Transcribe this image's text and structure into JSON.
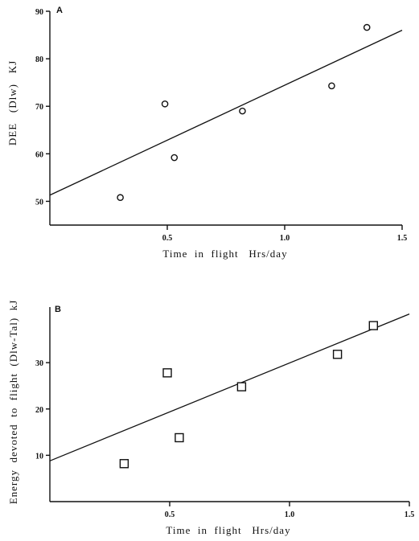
{
  "chart_data": [
    {
      "type": "scatter",
      "panel_label": "A",
      "xlabel": "Time  in  flight   Hrs/day",
      "ylabel": "DEE   (Dlw)   KJ",
      "xlim": [
        0,
        1.5
      ],
      "ylim": [
        45,
        90
      ],
      "xticks": [
        0.5,
        1.0,
        1.5
      ],
      "xtick_labels": [
        "0.5",
        "1.0",
        "1.5"
      ],
      "yticks": [
        50,
        60,
        70,
        80,
        90
      ],
      "ytick_labels": [
        "50",
        "60",
        "70",
        "80",
        "90"
      ],
      "marker": "circle",
      "points": [
        {
          "x": 0.3,
          "y": 50.8
        },
        {
          "x": 0.49,
          "y": 70.5
        },
        {
          "x": 0.53,
          "y": 59.2
        },
        {
          "x": 0.82,
          "y": 69.0
        },
        {
          "x": 1.2,
          "y": 74.3
        },
        {
          "x": 1.35,
          "y": 86.6
        }
      ],
      "regression_line": {
        "x": [
          0,
          1.5
        ],
        "y": [
          51.3,
          86.0
        ]
      },
      "grid": false,
      "legend": "none"
    },
    {
      "type": "scatter",
      "panel_label": "B",
      "xlabel": "Time  in  flight   Hrs/day",
      "ylabel": "Energy  devoted  to  flight  (Dlw-Tal)  kJ",
      "xlim": [
        0,
        1.5
      ],
      "ylim": [
        0,
        42
      ],
      "xticks": [
        0.5,
        1.0,
        1.5
      ],
      "xtick_labels": [
        "0.5",
        "1.0",
        "1.5"
      ],
      "yticks": [
        10,
        20,
        30
      ],
      "ytick_labels": [
        "10",
        "20",
        "30"
      ],
      "marker": "square",
      "points": [
        {
          "x": 0.31,
          "y": 8.2
        },
        {
          "x": 0.49,
          "y": 27.8
        },
        {
          "x": 0.54,
          "y": 13.8
        },
        {
          "x": 0.8,
          "y": 24.8
        },
        {
          "x": 1.2,
          "y": 31.8
        },
        {
          "x": 1.35,
          "y": 38.0
        }
      ],
      "regression_line": {
        "x": [
          0,
          1.5
        ],
        "y": [
          8.8,
          40.5
        ]
      },
      "grid": false,
      "legend": "none"
    }
  ]
}
